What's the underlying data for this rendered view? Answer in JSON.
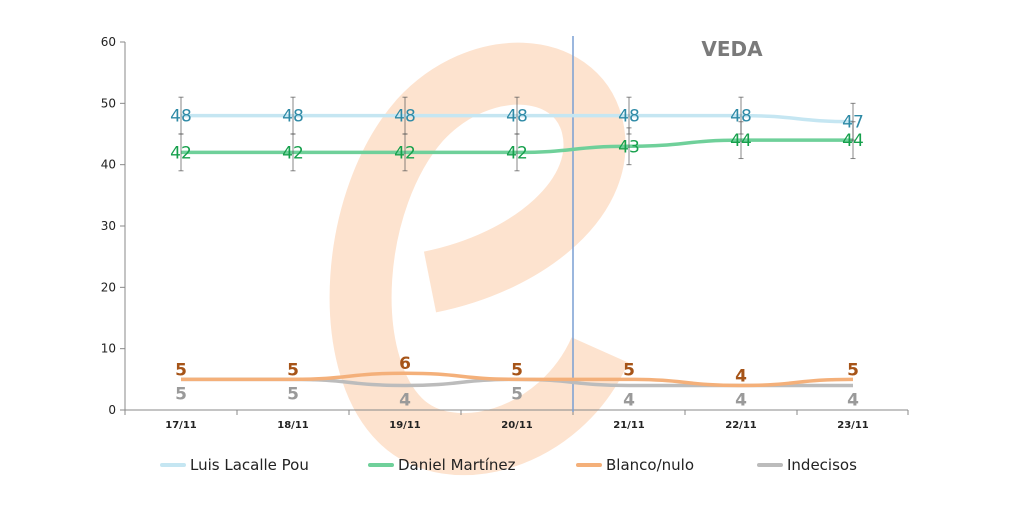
{
  "chart_data": {
    "type": "line",
    "title": "",
    "annotation": "VEDA",
    "watermark": "e",
    "categories": [
      "17/11",
      "18/11",
      "19/11",
      "20/11",
      "21/11",
      "22/11",
      "23/11"
    ],
    "ylim": [
      0,
      60
    ],
    "yticks": [
      "0",
      "10",
      "20",
      "30",
      "40",
      "50",
      "60"
    ],
    "veda_after_index": 3,
    "series": [
      {
        "name": "Luis Lacalle Pou",
        "values": [
          48,
          48,
          48,
          48,
          48,
          48,
          47
        ],
        "labels": [
          "48",
          "48",
          "48",
          "48",
          "48",
          "48",
          "47"
        ],
        "color": "#c5e6f2",
        "label_color": "#2e8aa6",
        "error": 3
      },
      {
        "name": "Daniel Martínez",
        "values": [
          42,
          42,
          42,
          42,
          43,
          44,
          44
        ],
        "labels": [
          "42",
          "42",
          "42",
          "42",
          "43",
          "44",
          "44"
        ],
        "color": "#6fd09a",
        "label_color": "#16a04c",
        "error": 3
      },
      {
        "name": "Blanco/nulo",
        "values": [
          5,
          5,
          6,
          5,
          5,
          4,
          5
        ],
        "labels": [
          "5",
          "5",
          "6",
          "5",
          "5",
          "4",
          "5"
        ],
        "color": "#f4b07a",
        "label_color": "#a65418",
        "error": 0
      },
      {
        "name": "Indecisos",
        "values": [
          5,
          5,
          4,
          5,
          4,
          4,
          4
        ],
        "labels": [
          "5",
          "5",
          "4",
          "5",
          "4",
          "4",
          "4"
        ],
        "color": "#bcbcbc",
        "label_color": "#9a9a9a",
        "error": 0
      }
    ]
  }
}
